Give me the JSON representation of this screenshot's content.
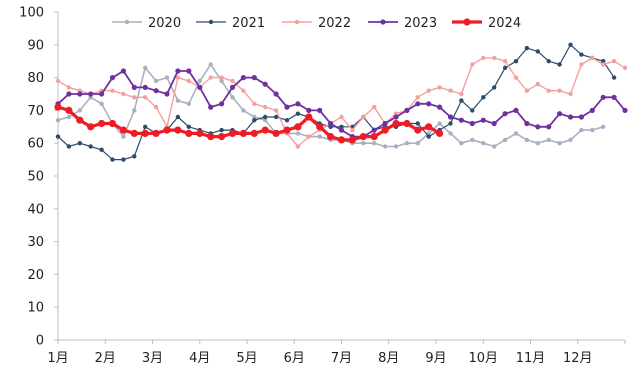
{
  "chart_data": {
    "type": "line",
    "ylim": [
      0,
      100
    ],
    "y_ticks": [
      0,
      10,
      20,
      30,
      40,
      50,
      60,
      70,
      80,
      90,
      100
    ],
    "x_tick_labels": [
      "1月",
      "2月",
      "3月",
      "4月",
      "5月",
      "6月",
      "7月",
      "8月",
      "9月",
      "10月",
      "11月",
      "12月"
    ],
    "weeks_per_year": 53,
    "grid": false,
    "legend_position": "top",
    "series": [
      {
        "name": "2020",
        "color": "#a9b0bf",
        "marker": "circle",
        "linewidth": 1.6,
        "values": [
          67,
          68,
          70,
          74,
          72,
          66,
          62,
          70,
          83,
          79,
          80,
          73,
          72,
          79,
          84,
          79,
          74,
          70,
          68,
          67,
          63,
          63,
          63,
          62,
          62,
          61,
          61,
          60,
          60,
          60,
          59,
          59,
          60,
          60,
          63,
          66,
          63,
          60,
          61,
          60,
          59,
          61,
          63,
          61,
          60,
          61,
          60,
          61,
          64,
          64,
          65
        ]
      },
      {
        "name": "2021",
        "color": "#2e4a6f",
        "marker": "circle",
        "linewidth": 1.2,
        "values": [
          62,
          59,
          60,
          59,
          58,
          55,
          55,
          56,
          65,
          63,
          64,
          68,
          65,
          64,
          63,
          64,
          64,
          63,
          67,
          68,
          68,
          67,
          69,
          68,
          66,
          65,
          65,
          65,
          68,
          64,
          65,
          65,
          66,
          66,
          62,
          64,
          66,
          73,
          70,
          74,
          77,
          83,
          85,
          89,
          88,
          85,
          84,
          90,
          87,
          86,
          85,
          80
        ]
      },
      {
        "name": "2022",
        "color": "#f4a0a0",
        "marker": "circle",
        "linewidth": 1.4,
        "values": [
          79,
          77,
          76,
          75,
          76,
          76,
          75,
          74,
          74,
          71,
          65,
          80,
          79,
          77,
          80,
          80,
          79,
          76,
          72,
          71,
          70,
          63,
          59,
          62,
          64,
          66,
          68,
          64,
          68,
          71,
          66,
          69,
          70,
          74,
          76,
          77,
          76,
          75,
          84,
          86,
          86,
          85,
          80,
          76,
          78,
          76,
          76,
          75,
          84,
          86,
          84,
          85,
          83,
          79,
          70
        ]
      },
      {
        "name": "2023",
        "color": "#7030a0",
        "marker": "circle",
        "linewidth": 1.8,
        "values": [
          72,
          75,
          75,
          75,
          75,
          80,
          82,
          77,
          77,
          76,
          75,
          82,
          82,
          77,
          71,
          72,
          77,
          80,
          80,
          78,
          75,
          71,
          72,
          70,
          70,
          66,
          64,
          62,
          62,
          64,
          66,
          68,
          70,
          72,
          72,
          71,
          68,
          67,
          66,
          67,
          66,
          69,
          70,
          66,
          65,
          65,
          69,
          68,
          68,
          70,
          74,
          74,
          70,
          68
        ]
      },
      {
        "name": "2024",
        "color": "#ee1c25",
        "marker": "circle",
        "linewidth": 3.2,
        "values": [
          71,
          70,
          67,
          65,
          66,
          66,
          64,
          63,
          63,
          63,
          64,
          64,
          63,
          63,
          62,
          62,
          63,
          63,
          63,
          64,
          63,
          64,
          65,
          68,
          65,
          62,
          61,
          61,
          62,
          62,
          64,
          66,
          66,
          64,
          65,
          63
        ]
      }
    ]
  },
  "colors": {
    "axis": "#bfbfbf",
    "text": "#222222",
    "background": "#ffffff"
  }
}
